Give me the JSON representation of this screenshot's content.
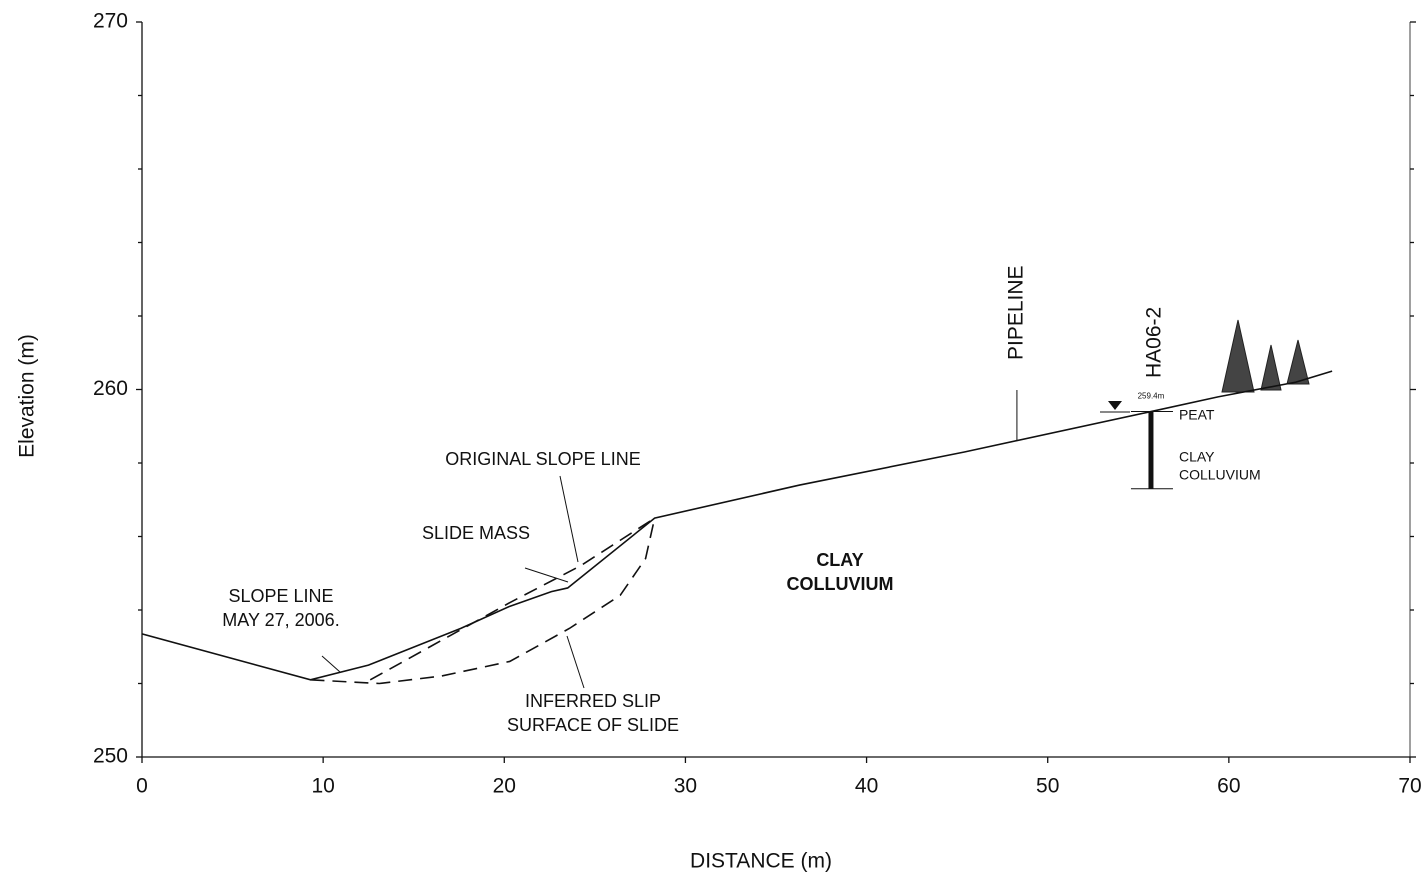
{
  "chart_data": {
    "type": "line",
    "x_label": "DISTANCE (m)",
    "y_label": "Elevation (m)",
    "xlim": [
      0,
      70
    ],
    "ylim": [
      250,
      270
    ],
    "xticks": [
      0,
      10,
      20,
      30,
      40,
      50,
      60,
      70
    ],
    "yticks": [
      250,
      260,
      270
    ],
    "yminorticks": [
      252,
      254,
      256,
      258,
      262,
      264,
      266,
      268
    ],
    "series": [
      {
        "color": "#111111",
        "dash": false,
        "x": [
          0,
          9.3,
          12.5,
          17.6,
          20.3,
          22.6,
          23.5,
          28.3,
          36.3,
          45.4,
          55.7,
          59.4,
          63.7,
          65.7
        ],
        "values": [
          253.35,
          252.1,
          252.5,
          253.5,
          254.1,
          254.5,
          254.6,
          256.5,
          257.4,
          258.3,
          259.4,
          259.8,
          260.2,
          260.5
        ]
      },
      {
        "color": "#111111",
        "dash": true,
        "x": [
          12.6,
          15.9,
          20.3,
          24.2,
          28.3
        ],
        "values": [
          252.1,
          253.0,
          254.2,
          255.2,
          256.5
        ]
      },
      {
        "color": "#111111",
        "dash": true,
        "x": [
          9.3,
          13.1,
          16.5,
          20.3,
          23.6,
          26.4,
          27.8,
          28.3
        ],
        "values": [
          252.1,
          252.0,
          252.2,
          252.6,
          253.5,
          254.4,
          255.4,
          256.5
        ]
      }
    ],
    "annotations": [
      {
        "lines": [
          "ORIGINAL SLOPE LINE"
        ]
      },
      {
        "lines": [
          "SLIDE MASS"
        ]
      },
      {
        "lines": [
          "SLOPE LINE",
          "MAY 27, 2006."
        ]
      },
      {
        "lines": [
          "INFERRED SLIP",
          "SURFACE OF SLIDE"
        ]
      },
      {
        "lines": [
          "CLAY",
          "COLLUVIUM"
        ]
      }
    ],
    "pipeline": {
      "label": "PIPELINE",
      "x": 48.3
    },
    "borehole": {
      "name": "HA06-2",
      "elevation_label": "259.4m",
      "x": 55.7,
      "top": 259.4,
      "bottom": 257.3,
      "layers": [
        {
          "lines": [
            "PEAT"
          ]
        },
        {
          "lines": [
            "CLAY",
            "COLLUVIUM"
          ]
        }
      ]
    }
  }
}
